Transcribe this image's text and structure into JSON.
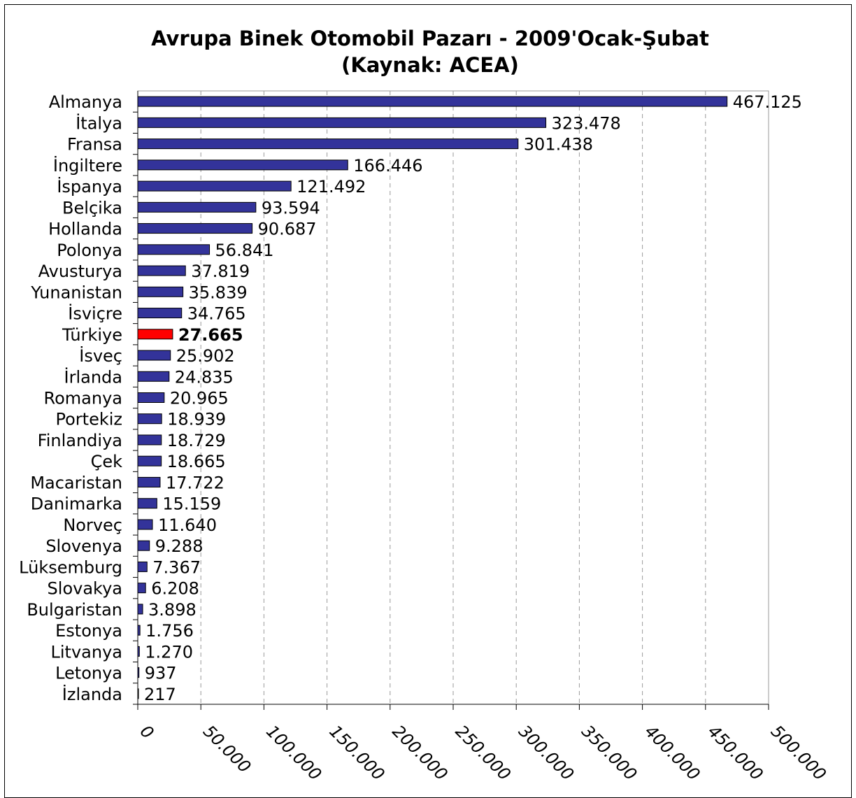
{
  "chart_data": {
    "type": "bar",
    "orientation": "horizontal",
    "title": "Avrupa Binek Otomobil Pazarı - 2009'Ocak-Şubat",
    "subtitle": "(Kaynak: ACEA)",
    "xlim": [
      0,
      500000
    ],
    "grid": true,
    "categories": [
      "Almanya",
      "İtalya",
      "Fransa",
      "İngiltere",
      "İspanya",
      "Belçika",
      "Hollanda",
      "Polonya",
      "Avusturya",
      "Yunanistan",
      "İsviçre",
      "Türkiye",
      "İsveç",
      "İrlanda",
      "Romanya",
      "Portekiz",
      "Finlandiya",
      "Çek",
      "Macaristan",
      "Danimarka",
      "Norveç",
      "Slovenya",
      "Lüksemburg",
      "Slovakya",
      "Bulgaristan",
      "Estonya",
      "Litvanya",
      "Letonya",
      "İzlanda"
    ],
    "values": [
      467125,
      323478,
      301438,
      166446,
      121492,
      93594,
      90687,
      56841,
      37819,
      35839,
      34765,
      27665,
      25902,
      24835,
      20965,
      18939,
      18729,
      18665,
      17722,
      15159,
      11640,
      9288,
      7367,
      6208,
      3898,
      1756,
      1270,
      937,
      217
    ],
    "value_labels": [
      "467.125",
      "323.478",
      "301.438",
      "166.446",
      "121.492",
      "93.594",
      "90.687",
      "56.841",
      "37.819",
      "35.839",
      "34.765",
      "27.665",
      "25.902",
      "24.835",
      "20.965",
      "18.939",
      "18.729",
      "18.665",
      "17.722",
      "15.159",
      "11.640",
      "9.288",
      "7.367",
      "6.208",
      "3.898",
      "1.756",
      "1.270",
      "937",
      "217"
    ],
    "highlight_category": "Türkiye",
    "tick_labels": [
      "0",
      "50.000",
      "100.000",
      "150.000",
      "200.000",
      "250.000",
      "300.000",
      "350.000",
      "400.000",
      "450.000",
      "500.000"
    ],
    "colors": {
      "bar": "#33339a",
      "highlight": "#ff0000",
      "grid": "#9a9a9a"
    }
  }
}
